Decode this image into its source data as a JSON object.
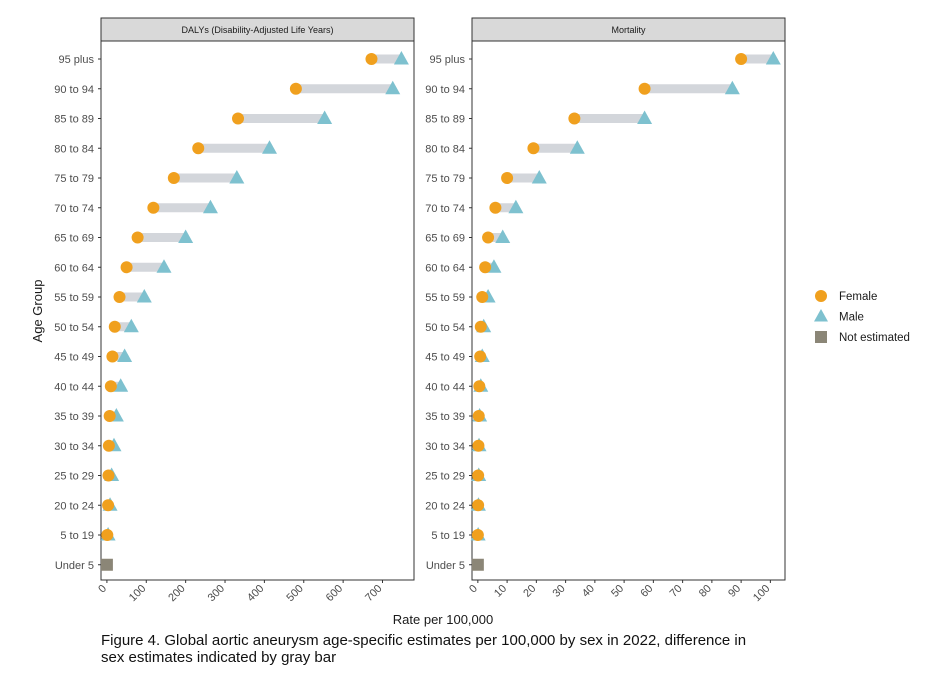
{
  "chart_data": {
    "type": "scatter",
    "ylabel": "Age Group",
    "xlabel": "Rate per 100,000",
    "categories": [
      "95 plus",
      "90 to 94",
      "85 to 89",
      "80 to 84",
      "75 to 79",
      "70 to 74",
      "65 to 69",
      "60 to 64",
      "55 to 59",
      "50 to 54",
      "45 to 49",
      "40 to 44",
      "35 to 39",
      "30 to 34",
      "25 to 29",
      "20 to 24",
      "5 to 19",
      "Under 5"
    ],
    "legend": {
      "position": "right",
      "entries": [
        {
          "label": "Female",
          "shape": "circle",
          "color": "#F0A01E"
        },
        {
          "label": "Male",
          "shape": "triangle",
          "color": "#7EC1CF"
        },
        {
          "label": "Not estimated",
          "shape": "square",
          "color": "#8B8677"
        }
      ]
    },
    "gap_bar_color": "#D3D6DB",
    "panels": [
      {
        "strip_title": "DALYs (Disability-Adjusted Life Years)",
        "xlim": [
          -15,
          780
        ],
        "xticks": [
          0,
          100,
          200,
          300,
          400,
          500,
          600,
          700
        ],
        "series": [
          {
            "name": "Female",
            "values": [
              672,
              480,
              333,
              232,
              170,
              118,
              78,
              50,
              32,
              20,
              14,
              10,
              7,
              5,
              4,
              3,
              1,
              null
            ]
          },
          {
            "name": "Male",
            "values": [
              748,
              726,
              553,
              413,
              330,
              263,
              200,
              145,
              95,
              62,
              45,
              35,
              24,
              18,
              12,
              8,
              3,
              null
            ]
          },
          {
            "name": "Not estimated",
            "values": [
              null,
              null,
              null,
              null,
              null,
              null,
              null,
              null,
              null,
              null,
              null,
              null,
              null,
              null,
              null,
              null,
              null,
              0
            ]
          }
        ]
      },
      {
        "strip_title": "Mortality",
        "xlim": [
          -2,
          105
        ],
        "xticks": [
          0,
          10,
          20,
          30,
          40,
          50,
          60,
          70,
          80,
          90,
          100
        ],
        "series": [
          {
            "name": "Female",
            "values": [
              90,
              57,
              33,
              19,
              10,
              6,
              3.5,
              2.5,
              1.5,
              1,
              0.8,
              0.5,
              0.3,
              0.2,
              0.1,
              0.1,
              0,
              null
            ]
          },
          {
            "name": "Male",
            "values": [
              101,
              87,
              57,
              34,
              21,
              13,
              8.5,
              5.5,
              3.5,
              2,
              1.5,
              1,
              0.6,
              0.4,
              0.3,
              0.2,
              0.1,
              null
            ]
          },
          {
            "name": "Not estimated",
            "values": [
              null,
              null,
              null,
              null,
              null,
              null,
              null,
              null,
              null,
              null,
              null,
              null,
              null,
              null,
              null,
              null,
              null,
              0
            ]
          }
        ]
      }
    ]
  },
  "caption": {
    "line1": "Figure 4. Global aortic aneurysm age-specific estimates per 100,000 by sex in 2022, difference in",
    "line2": "sex estimates indicated by gray bar"
  }
}
